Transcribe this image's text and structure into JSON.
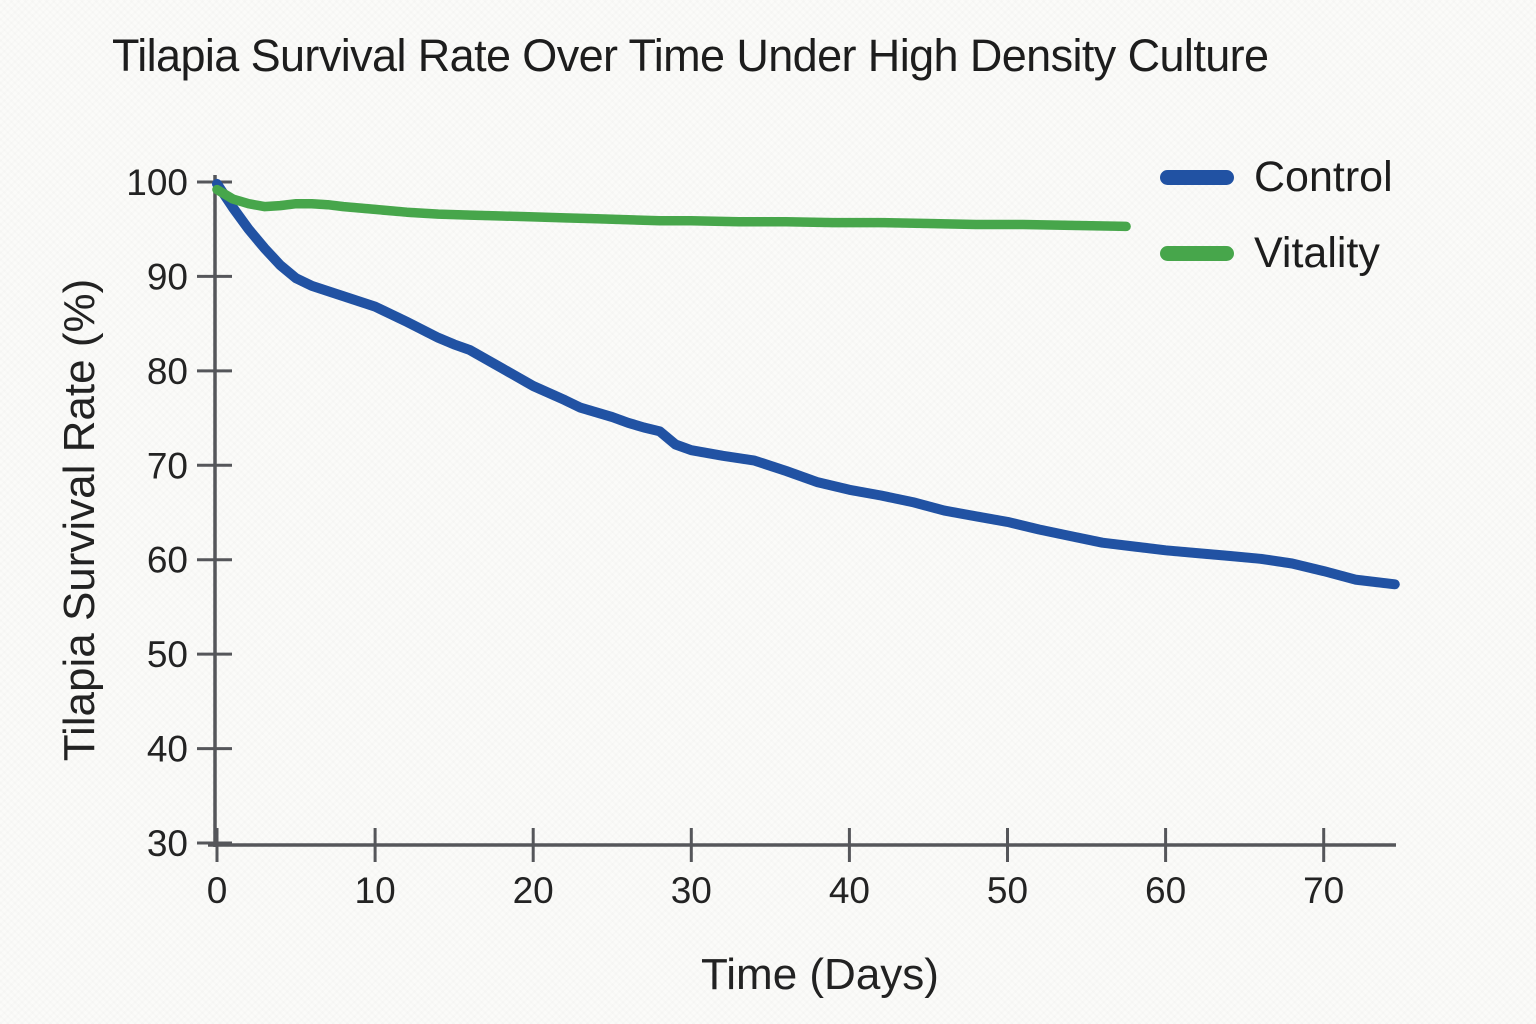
{
  "page": {
    "background": "#fbfbf9"
  },
  "chart_data": {
    "type": "line",
    "title": "Tilapia Survival Rate Over Time Under High Density Culture",
    "xlabel": "Time (Days)",
    "ylabel": "Tilapia Survival Rate (%)",
    "xlim": [
      0,
      75
    ],
    "ylim": [
      30,
      100
    ],
    "x_ticks": [
      0,
      10,
      20,
      30,
      40,
      50,
      60,
      70
    ],
    "y_ticks": [
      30,
      40,
      50,
      60,
      70,
      80,
      90,
      100
    ],
    "grid": false,
    "legend_position": "upper right",
    "axis_color": "#55565a",
    "series": [
      {
        "name": "Control",
        "color": "#2152a3",
        "line_width": 10,
        "x": [
          0,
          1,
          2,
          3,
          4,
          5,
          6,
          8,
          10,
          12,
          14,
          15,
          16,
          18,
          20,
          22,
          23,
          25,
          26,
          27,
          28,
          29,
          30,
          32,
          34,
          36,
          38,
          40,
          42,
          44,
          46,
          48,
          50,
          52,
          54,
          56,
          58,
          60,
          62,
          64,
          66,
          68,
          70,
          72,
          74.5
        ],
        "y": [
          99.8,
          97.3,
          95.0,
          93.0,
          91.2,
          89.8,
          89.0,
          87.9,
          86.8,
          85.2,
          83.5,
          82.8,
          82.2,
          80.3,
          78.4,
          76.9,
          76.1,
          75.1,
          74.5,
          74.0,
          73.6,
          72.2,
          71.6,
          71.0,
          70.5,
          69.4,
          68.2,
          67.4,
          66.8,
          66.1,
          65.2,
          64.6,
          64.0,
          63.2,
          62.5,
          61.8,
          61.4,
          61.0,
          60.7,
          60.4,
          60.1,
          59.6,
          58.8,
          57.9,
          57.4
        ]
      },
      {
        "name": "Vitality",
        "color": "#47a64b",
        "line_width": 9.5,
        "x": [
          0,
          1,
          2,
          3,
          4,
          5,
          6,
          7,
          8,
          10,
          12,
          14,
          16,
          18,
          20,
          22,
          24,
          26,
          28,
          30,
          33,
          36,
          39,
          42,
          45,
          48,
          51,
          54,
          57.5
        ],
        "y": [
          99.2,
          98.2,
          97.7,
          97.4,
          97.5,
          97.7,
          97.7,
          97.6,
          97.4,
          97.1,
          96.8,
          96.6,
          96.5,
          96.4,
          96.3,
          96.2,
          96.1,
          96.0,
          95.9,
          95.9,
          95.8,
          95.8,
          95.7,
          95.7,
          95.6,
          95.5,
          95.5,
          95.4,
          95.3
        ]
      }
    ]
  }
}
